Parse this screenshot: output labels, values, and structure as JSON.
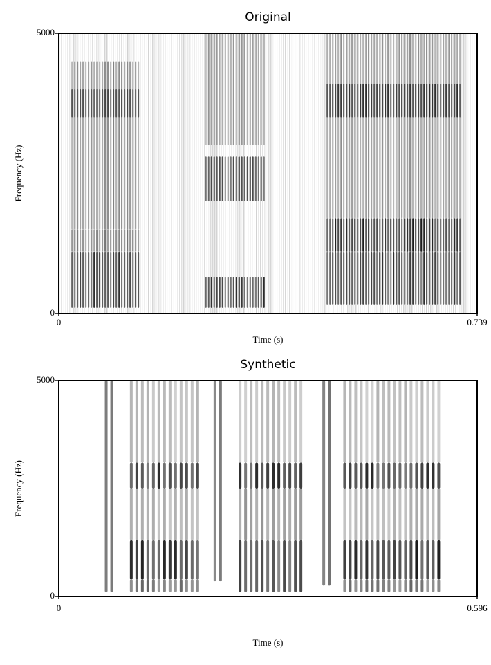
{
  "chart_data": [
    {
      "type": "spectrogram",
      "title": "Original",
      "xlabel": "Time (s)",
      "ylabel": "Frequency (Hz)",
      "xlim": [
        0,
        0.739
      ],
      "ylim": [
        0,
        5000
      ],
      "xticks": [
        0,
        0.739
      ],
      "yticks": [
        0,
        5000
      ]
    },
    {
      "type": "spectrogram",
      "title": "Synthetic",
      "xlabel": "Time (s)",
      "ylabel": "Frequency (Hz)",
      "xlim": [
        0,
        0.596
      ],
      "ylim": [
        0,
        5000
      ],
      "xticks": [
        0,
        0.596
      ],
      "yticks": [
        0,
        5000
      ]
    }
  ]
}
